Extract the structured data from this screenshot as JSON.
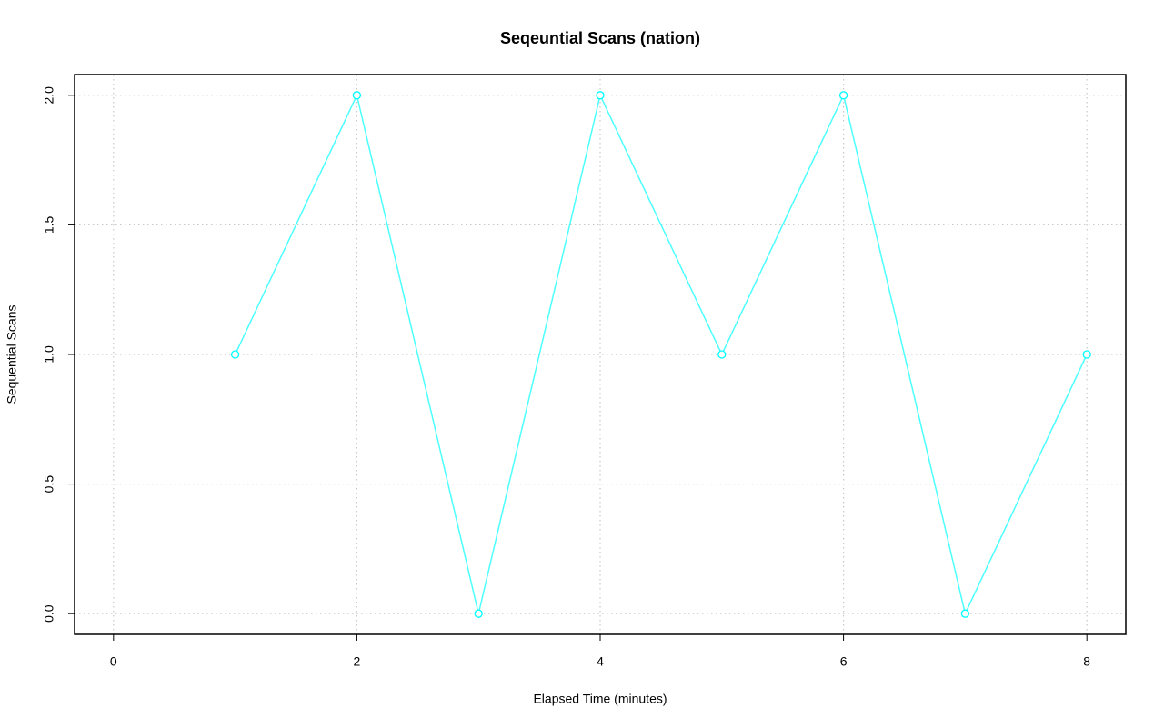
{
  "chart_data": {
    "type": "line",
    "title": "Seqeuntial Scans (nation)",
    "x_label": "Elapsed Time (minutes)",
    "y_label": "Sequential Scans",
    "x": [
      1,
      2,
      3,
      4,
      5,
      6,
      7,
      8
    ],
    "series": [
      {
        "color": "#00ffff",
        "values": [
          1,
          2,
          0,
          2,
          1,
          2,
          0,
          1
        ]
      }
    ],
    "xlim": [
      -0.32,
      8.32
    ],
    "xticks": [
      0,
      2,
      4,
      6,
      8
    ],
    "ylim": [
      -0.08,
      2.08
    ],
    "yticks": [
      {
        "value": 0,
        "label": "0.0"
      },
      {
        "value": 0.5,
        "label": "0.5"
      },
      {
        "value": 1,
        "label": "1.0"
      },
      {
        "value": 1.5,
        "label": "1.5"
      },
      {
        "value": 2,
        "label": "2.0"
      }
    ],
    "grid": true
  }
}
